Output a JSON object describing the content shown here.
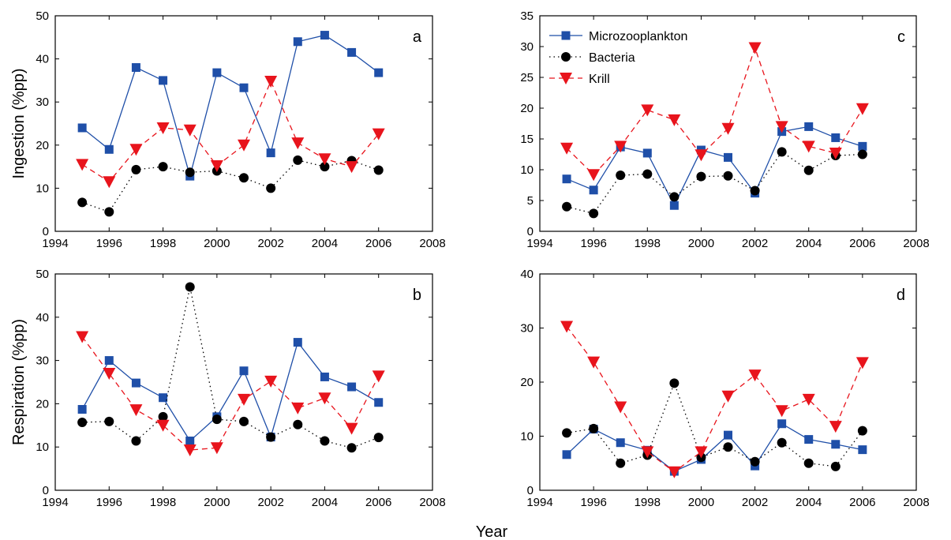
{
  "figure": {
    "xlabel": "Year"
  },
  "styles": {
    "Microzooplankton": {
      "color": "#1f4fa8",
      "dash": "",
      "marker": "square"
    },
    "Bacteria": {
      "color": "#000000",
      "dash": "1.5,4",
      "marker": "circle"
    },
    "Krill": {
      "color": "#e8141c",
      "dash": "7,5",
      "marker": "triangle-down"
    }
  },
  "chart_data": [
    {
      "type": "line",
      "panel": "a",
      "title": "",
      "xlabel": "",
      "ylabel": "Ingestion (%pp)",
      "xlim": [
        1994,
        2008
      ],
      "ylim": [
        0,
        50
      ],
      "xticks": [
        1994,
        1996,
        1998,
        2000,
        2002,
        2004,
        2006,
        2008
      ],
      "yticks": [
        0,
        10,
        20,
        30,
        40,
        50
      ],
      "x": [
        1995,
        1996,
        1997,
        1998,
        1999,
        2000,
        2001,
        2002,
        2003,
        2004,
        2005,
        2006
      ],
      "series": [
        {
          "name": "Microzooplankton",
          "values": [
            24,
            19,
            38,
            35,
            12.8,
            36.8,
            33.3,
            18.2,
            44,
            45.5,
            41.5,
            36.8
          ]
        },
        {
          "name": "Bacteria",
          "values": [
            6.7,
            4.5,
            14.3,
            15,
            13.7,
            14,
            12.4,
            10,
            16.5,
            15,
            16.4,
            14.2
          ]
        },
        {
          "name": "Krill",
          "values": [
            15.5,
            11.5,
            19,
            24,
            23.5,
            15.2,
            20,
            34.8,
            20.5,
            16.8,
            15,
            22.6
          ]
        }
      ],
      "legend": false
    },
    {
      "type": "line",
      "panel": "b",
      "title": "",
      "xlabel": "",
      "ylabel": "Respiration (%pp)",
      "xlim": [
        1994,
        2008
      ],
      "ylim": [
        0,
        50
      ],
      "xticks": [
        1994,
        1996,
        1998,
        2000,
        2002,
        2004,
        2006,
        2008
      ],
      "yticks": [
        0,
        10,
        20,
        30,
        40,
        50
      ],
      "x": [
        1995,
        1996,
        1997,
        1998,
        1999,
        2000,
        2001,
        2002,
        2003,
        2004,
        2005,
        2006
      ],
      "series": [
        {
          "name": "Microzooplankton",
          "values": [
            18.7,
            30,
            24.8,
            21.4,
            11.4,
            17,
            27.6,
            12.3,
            34.2,
            26.2,
            23.9,
            20.3
          ]
        },
        {
          "name": "Bacteria",
          "values": [
            15.7,
            15.9,
            11.4,
            17,
            47,
            16.4,
            15.9,
            12.3,
            15.2,
            11.4,
            9.8,
            12.2
          ]
        },
        {
          "name": "Krill",
          "values": [
            35.5,
            27,
            18.6,
            15,
            9.3,
            9.8,
            21,
            25.2,
            19,
            21.3,
            14.3,
            26.4
          ]
        }
      ],
      "legend": false
    },
    {
      "type": "line",
      "panel": "c",
      "title": "",
      "xlabel": "",
      "ylabel": "",
      "xlim": [
        1994,
        2008
      ],
      "ylim": [
        0,
        35
      ],
      "xticks": [
        1994,
        1996,
        1998,
        2000,
        2002,
        2004,
        2006,
        2008
      ],
      "yticks": [
        0,
        5,
        10,
        15,
        20,
        25,
        30,
        35
      ],
      "x": [
        1995,
        1996,
        1997,
        1998,
        1999,
        2000,
        2001,
        2002,
        2003,
        2004,
        2005,
        2006
      ],
      "series": [
        {
          "name": "Microzooplankton",
          "values": [
            8.5,
            6.7,
            13.7,
            12.7,
            4.2,
            13.2,
            12,
            6.2,
            16.2,
            17,
            15.2,
            13.8
          ]
        },
        {
          "name": "Bacteria",
          "values": [
            4,
            2.9,
            9.1,
            9.3,
            5.6,
            8.9,
            9,
            6.6,
            12.9,
            9.9,
            12.3,
            12.5
          ]
        },
        {
          "name": "Krill",
          "values": [
            13.5,
            9.2,
            13.8,
            19.7,
            18.1,
            12.4,
            16.7,
            29.8,
            17,
            13.8,
            12.7,
            19.9
          ]
        }
      ],
      "legend": true,
      "legend_position": "top-left"
    },
    {
      "type": "line",
      "panel": "d",
      "title": "",
      "xlabel": "",
      "ylabel": "",
      "xlim": [
        1994,
        2008
      ],
      "ylim": [
        0,
        40
      ],
      "xticks": [
        1994,
        1996,
        1998,
        2000,
        2002,
        2004,
        2006,
        2008
      ],
      "yticks": [
        0,
        10,
        20,
        30,
        40
      ],
      "x": [
        1995,
        1996,
        1997,
        1998,
        1999,
        2000,
        2001,
        2002,
        2003,
        2004,
        2005,
        2006
      ],
      "series": [
        {
          "name": "Microzooplankton",
          "values": [
            6.6,
            11.3,
            8.8,
            7.4,
            3.5,
            5.7,
            10.2,
            4.5,
            12.3,
            9.4,
            8.5,
            7.5
          ]
        },
        {
          "name": "Bacteria",
          "values": [
            10.6,
            11.4,
            5,
            6.5,
            19.8,
            6.1,
            8,
            5.3,
            8.8,
            5,
            4.4,
            11
          ]
        },
        {
          "name": "Krill",
          "values": [
            30.3,
            23.7,
            15.4,
            7.1,
            3.4,
            7.1,
            17.4,
            21.3,
            14.7,
            16.8,
            11.8,
            23.6
          ]
        }
      ],
      "legend": false
    }
  ]
}
